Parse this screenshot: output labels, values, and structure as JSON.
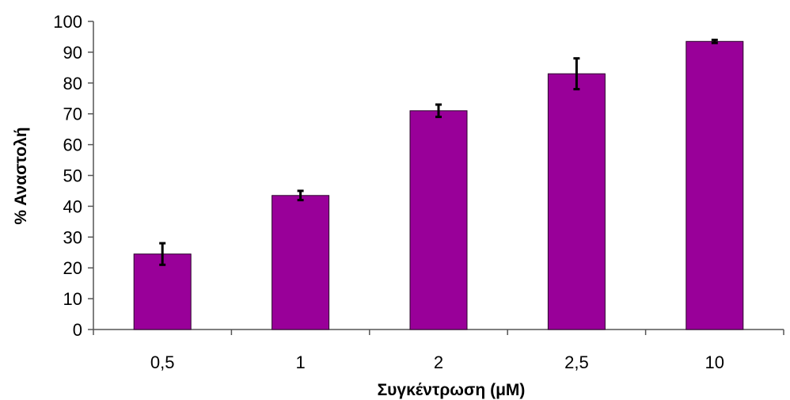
{
  "chart_data": {
    "type": "bar",
    "title": "",
    "xlabel": "Συγκέντρωση (μM)",
    "ylabel": "% Αναστολή",
    "categories": [
      "0,5",
      "1",
      "2",
      "2,5",
      "10"
    ],
    "values": [
      24.5,
      43.5,
      71,
      83,
      93.5
    ],
    "error_plus": [
      3.5,
      1.5,
      2,
      5,
      0.5
    ],
    "error_minus": [
      3.5,
      1.5,
      2,
      5,
      0.5
    ],
    "ylim": [
      0,
      100
    ],
    "yticks": [
      0,
      10,
      20,
      30,
      40,
      50,
      60,
      70,
      80,
      90,
      100
    ],
    "grid": false,
    "legend": "none",
    "colors": {
      "bar": "#990099",
      "bar_stroke": "#2a002a",
      "error_bar": "#000000",
      "axis": "#555555"
    }
  }
}
